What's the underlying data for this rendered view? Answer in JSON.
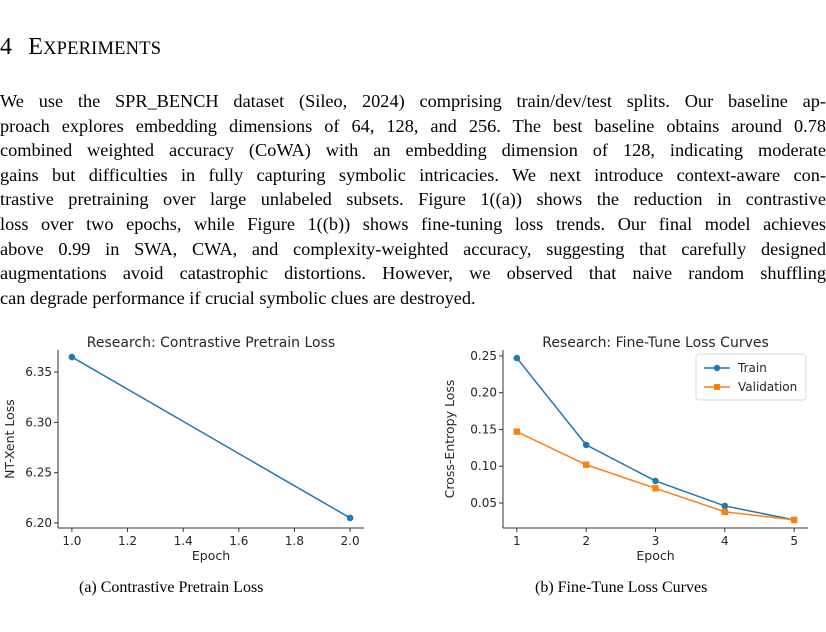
{
  "section": {
    "number": "4",
    "title_first": "E",
    "title_rest": "XPERIMENTS"
  },
  "paragraph": {
    "lines": [
      "We use the SPR_BENCH dataset (Sileo, 2024) comprising train/dev/test splits.  Our baseline ap-",
      "proach explores embedding dimensions of 64, 128, and 256. The best baseline obtains around 0.78",
      "combined weighted accuracy (CoWA) with an embedding dimension of 128, indicating moderate",
      "gains but difficulties in fully capturing symbolic intricacies. We next introduce context-aware con-",
      "trastive pretraining over large unlabeled subsets.  Figure 1((a)) shows the reduction in contrastive",
      "loss over two epochs, while Figure 1((b)) shows fine-tuning loss trends.  Our final model achieves",
      "above 0.99 in SWA, CWA, and complexity-weighted accuracy, suggesting that carefully designed",
      "augmentations avoid catastrophic distortions.  However, we observed that naive random shuffling",
      "can degrade performance if crucial symbolic clues are destroyed."
    ]
  },
  "captions": {
    "a": "(a)  Contrastive Pretrain Loss",
    "b": "(b)  Fine-Tune Loss Curves"
  },
  "chart_data": [
    {
      "type": "line",
      "title": "Research: Contrastive Pretrain Loss",
      "xlabel": "Epoch",
      "ylabel": "NT-Xent Loss",
      "xlim": [
        0.95,
        2.05
      ],
      "ylim": [
        6.195,
        6.372
      ],
      "xticks": [
        "1.0",
        "1.2",
        "1.4",
        "1.6",
        "1.8",
        "2.0"
      ],
      "yticks": [
        "6.20",
        "6.25",
        "6.30",
        "6.35"
      ],
      "grid": false,
      "series": [
        {
          "x": [
            1.0,
            2.0
          ],
          "y": [
            6.365,
            6.205
          ],
          "color": "#1f77b4",
          "marker": "circle"
        }
      ]
    },
    {
      "type": "line",
      "title": "Research: Fine-Tune Loss Curves",
      "xlabel": "Epoch",
      "ylabel": "Cross-Entropy Loss",
      "xlim": [
        0.8,
        5.2
      ],
      "ylim": [
        0.016,
        0.258
      ],
      "xticks": [
        "1",
        "2",
        "3",
        "4",
        "5"
      ],
      "yticks": [
        "0.05",
        "0.10",
        "0.15",
        "0.20",
        "0.25"
      ],
      "grid": false,
      "legend_position": "top-right",
      "series": [
        {
          "name": "Train",
          "x": [
            1,
            2,
            3,
            4,
            5
          ],
          "y": [
            0.247,
            0.129,
            0.08,
            0.046,
            0.027
          ],
          "color": "#1f77b4",
          "marker": "circle"
        },
        {
          "name": "Validation",
          "x": [
            1,
            2,
            3,
            4,
            5
          ],
          "y": [
            0.147,
            0.102,
            0.07,
            0.038,
            0.027
          ],
          "color": "#ff7f0e",
          "marker": "square"
        }
      ]
    }
  ]
}
